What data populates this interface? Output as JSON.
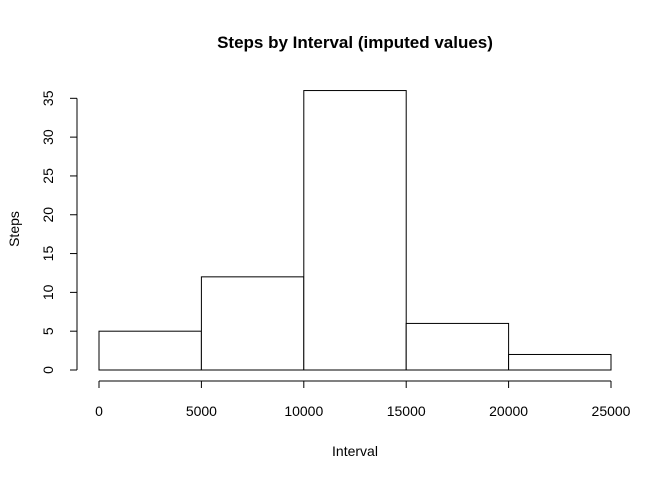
{
  "chart_data": {
    "type": "bar",
    "title": "Steps by Interval (imputed values)",
    "xlabel": "Interval",
    "ylabel": "Steps",
    "bins": [
      {
        "start": 0,
        "end": 5000,
        "value": 5
      },
      {
        "start": 5000,
        "end": 10000,
        "value": 12
      },
      {
        "start": 10000,
        "end": 15000,
        "value": 36
      },
      {
        "start": 15000,
        "end": 20000,
        "value": 6
      },
      {
        "start": 20000,
        "end": 25000,
        "value": 2
      }
    ],
    "xlim": [
      0,
      25000
    ],
    "ylim": [
      0,
      35
    ],
    "x_ticks": [
      0,
      5000,
      10000,
      15000,
      20000,
      25000
    ],
    "y_ticks": [
      0,
      5,
      10,
      15,
      20,
      25,
      30,
      35
    ],
    "grid": false,
    "colors": {
      "bar_fill": "#ffffff",
      "bar_stroke": "#000000",
      "text": "#000000"
    }
  }
}
